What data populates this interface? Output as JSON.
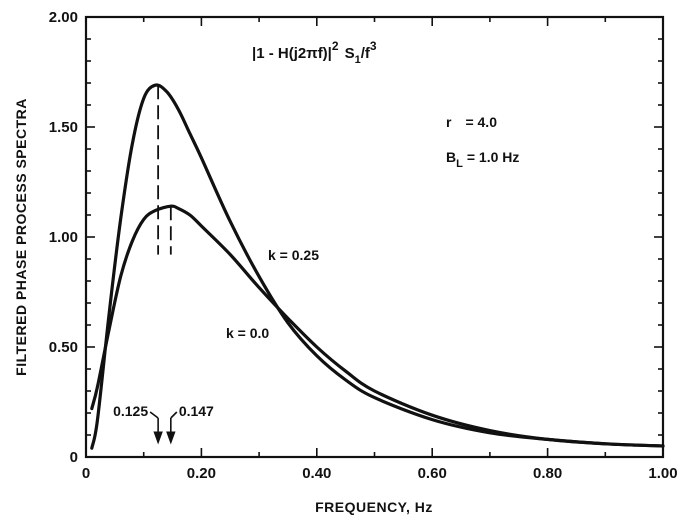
{
  "chart_data": {
    "type": "line",
    "title": "",
    "xlabel": "FREQUENCY, Hz",
    "ylabel": "FILTERED PHASE PROCESS SPECTRA",
    "xlim": [
      0,
      1.0
    ],
    "ylim": [
      0,
      2.0
    ],
    "grid": false,
    "x_ticks": [
      0,
      0.2,
      0.4,
      0.6,
      0.8,
      1.0
    ],
    "x_tick_labels": [
      "0",
      "0.20",
      "0.40",
      "0.60",
      "0.80",
      "1.00"
    ],
    "y_ticks": [
      0,
      0.5,
      1.0,
      1.5,
      2.0
    ],
    "y_tick_labels": [
      "0",
      "0.50",
      "1.00",
      "1.50",
      "2.00"
    ],
    "series": [
      {
        "name": "k = 0.25",
        "x": [
          0.01,
          0.02,
          0.04,
          0.06,
          0.08,
          0.1,
          0.12,
          0.14,
          0.16,
          0.18,
          0.2,
          0.25,
          0.3,
          0.35,
          0.4,
          0.45,
          0.5,
          0.6,
          0.7,
          0.8,
          0.9,
          1.0
        ],
        "y": [
          0.04,
          0.17,
          0.65,
          1.08,
          1.42,
          1.63,
          1.69,
          1.66,
          1.58,
          1.47,
          1.36,
          1.07,
          0.82,
          0.61,
          0.46,
          0.35,
          0.27,
          0.17,
          0.11,
          0.08,
          0.06,
          0.05
        ]
      },
      {
        "name": "k = 0.0",
        "x": [
          0.01,
          0.02,
          0.04,
          0.06,
          0.08,
          0.1,
          0.12,
          0.147,
          0.16,
          0.18,
          0.2,
          0.25,
          0.3,
          0.35,
          0.4,
          0.45,
          0.5,
          0.6,
          0.7,
          0.8,
          0.9,
          1.0
        ],
        "y": [
          0.22,
          0.32,
          0.58,
          0.82,
          0.98,
          1.08,
          1.12,
          1.14,
          1.13,
          1.1,
          1.05,
          0.92,
          0.77,
          0.63,
          0.5,
          0.39,
          0.3,
          0.19,
          0.12,
          0.08,
          0.06,
          0.05
        ]
      }
    ],
    "peak_markers": [
      {
        "x": 0.125,
        "y_top": 1.69,
        "label": "0.125"
      },
      {
        "x": 0.147,
        "y_top": 1.14,
        "label": "0.147"
      }
    ],
    "annotations": {
      "formula_main": "|1 - H(j2πf)|",
      "formula_sup": "2",
      "formula_s": "S",
      "formula_sub": "1",
      "formula_tail": "/f",
      "formula_tail_sup": "3",
      "r_label": "r",
      "r_value": "= 4.0",
      "bl_label": "B",
      "bl_sub": "L",
      "bl_value": "= 1.0 Hz"
    }
  }
}
